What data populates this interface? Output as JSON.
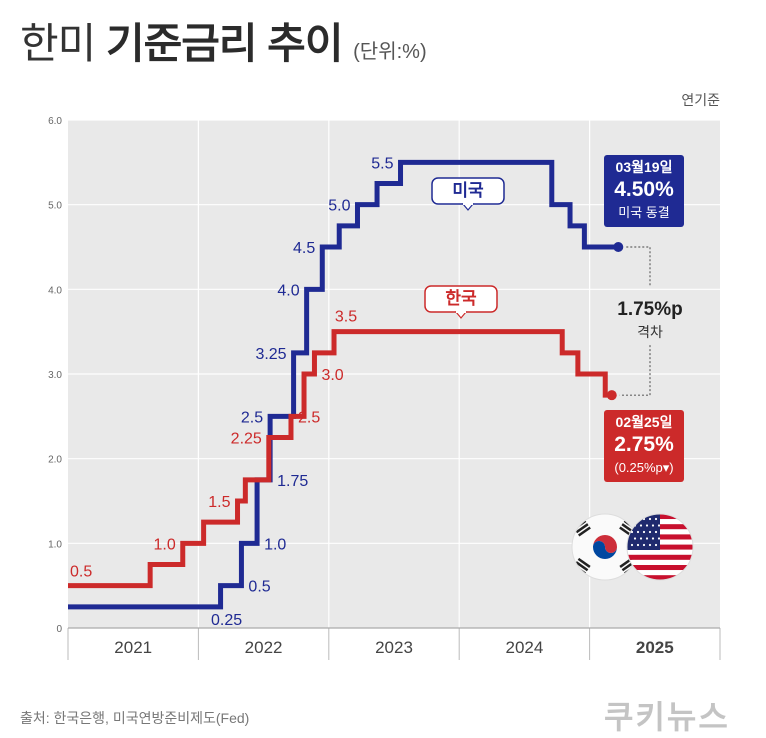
{
  "title": {
    "light": "한미",
    "bold": "기준금리 추이",
    "unit": "(단위:%)"
  },
  "base_year_label": "연기준",
  "source": "출처: 한국은행, 미국연방준비제도(Fed)",
  "logo": "쿠키뉴스",
  "colors": {
    "us": "#1f2a93",
    "korea": "#cc2a2a",
    "plot_bg": "#e9e9e9",
    "grid": "#ffffff"
  },
  "chart_data": {
    "type": "line",
    "step": true,
    "xlim": [
      2021.0,
      2026.0
    ],
    "ylim": [
      0,
      6.0
    ],
    "yticks": [
      "0",
      "1.0",
      "2.0",
      "3.0",
      "4.0",
      "5.0",
      "6.0"
    ],
    "year_labels": [
      "2021",
      "2022",
      "2023",
      "2024",
      "2025"
    ],
    "grid": true,
    "series": [
      {
        "name": "미국",
        "key": "us",
        "points": [
          [
            2021.0,
            0.25
          ],
          [
            2022.17,
            0.5
          ],
          [
            2022.33,
            1.0
          ],
          [
            2022.45,
            1.75
          ],
          [
            2022.55,
            2.5
          ],
          [
            2022.73,
            3.25
          ],
          [
            2022.83,
            4.0
          ],
          [
            2022.95,
            4.5
          ],
          [
            2023.08,
            4.75
          ],
          [
            2023.22,
            5.0
          ],
          [
            2023.37,
            5.25
          ],
          [
            2023.55,
            5.5
          ],
          [
            2024.71,
            5.0
          ],
          [
            2024.85,
            4.75
          ],
          [
            2024.96,
            4.5
          ],
          [
            2025.22,
            4.5
          ]
        ],
        "labels": [
          {
            "x": 2022.17,
            "y": 0.25,
            "text": "0.25",
            "pos": "below"
          },
          {
            "x": 2022.33,
            "y": 0.5,
            "text": "0.5",
            "pos": "right"
          },
          {
            "x": 2022.45,
            "y": 1.0,
            "text": "1.0",
            "pos": "right"
          },
          {
            "x": 2022.55,
            "y": 1.75,
            "text": "1.75",
            "pos": "right"
          },
          {
            "x": 2022.55,
            "y": 2.5,
            "text": "2.5",
            "pos": "left"
          },
          {
            "x": 2022.73,
            "y": 3.25,
            "text": "3.25",
            "pos": "left"
          },
          {
            "x": 2022.83,
            "y": 4.0,
            "text": "4.0",
            "pos": "left"
          },
          {
            "x": 2022.95,
            "y": 4.5,
            "text": "4.5",
            "pos": "left"
          },
          {
            "x": 2023.22,
            "y": 5.0,
            "text": "5.0",
            "pos": "left"
          },
          {
            "x": 2023.55,
            "y": 5.5,
            "text": "5.5",
            "pos": "left"
          }
        ],
        "tag": "미국",
        "callout": {
          "date": "03월19일",
          "rate": "4.50%",
          "note": "미국 동결"
        }
      },
      {
        "name": "한국",
        "key": "korea",
        "points": [
          [
            2021.0,
            0.5
          ],
          [
            2021.63,
            0.75
          ],
          [
            2021.88,
            1.0
          ],
          [
            2022.04,
            1.25
          ],
          [
            2022.3,
            1.5
          ],
          [
            2022.36,
            1.75
          ],
          [
            2022.54,
            2.25
          ],
          [
            2022.71,
            2.5
          ],
          [
            2022.81,
            3.0
          ],
          [
            2022.89,
            3.25
          ],
          [
            2023.04,
            3.5
          ],
          [
            2024.79,
            3.25
          ],
          [
            2024.91,
            3.0
          ],
          [
            2025.12,
            2.75
          ],
          [
            2025.17,
            2.75
          ]
        ],
        "labels": [
          {
            "x": 2021.0,
            "y": 0.5,
            "text": "0.5",
            "pos": "above-left"
          },
          {
            "x": 2021.88,
            "y": 1.0,
            "text": "1.0",
            "pos": "left"
          },
          {
            "x": 2022.3,
            "y": 1.5,
            "text": "1.5",
            "pos": "left"
          },
          {
            "x": 2022.54,
            "y": 2.25,
            "text": "2.25",
            "pos": "left"
          },
          {
            "x": 2022.71,
            "y": 2.5,
            "text": "2.5",
            "pos": "right"
          },
          {
            "x": 2022.89,
            "y": 3.0,
            "text": "3.0",
            "pos": "right"
          },
          {
            "x": 2023.04,
            "y": 3.5,
            "text": "3.5",
            "pos": "above"
          }
        ],
        "tag": "한국",
        "callout": {
          "date": "02월25일",
          "rate": "2.75%",
          "note": "(0.25%p▾)"
        }
      }
    ],
    "gap": {
      "value": "1.75%p",
      "label": "격차"
    }
  }
}
